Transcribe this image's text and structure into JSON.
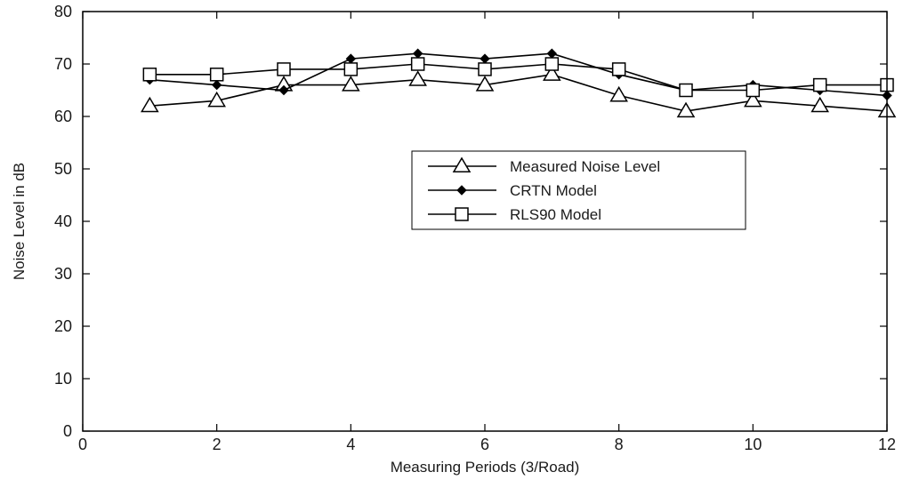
{
  "chart_data": {
    "type": "line",
    "title": "",
    "xlabel": "Measuring Periods (3/Road)",
    "ylabel": "Noise Level in dB",
    "xlim": [
      0,
      12
    ],
    "ylim": [
      0,
      80
    ],
    "xticks": [
      0,
      2,
      4,
      6,
      8,
      10,
      12
    ],
    "yticks": [
      0,
      10,
      20,
      30,
      40,
      50,
      60,
      70,
      80
    ],
    "grid": false,
    "legend_position": "center-right",
    "x": [
      1,
      2,
      3,
      4,
      5,
      6,
      7,
      8,
      9,
      10,
      11,
      12
    ],
    "series": [
      {
        "name": "Measured Noise Level",
        "marker": "triangle",
        "color": "#000000",
        "values": [
          62,
          63,
          66,
          66,
          67,
          66,
          68,
          64,
          61,
          63,
          62,
          61
        ]
      },
      {
        "name": "CRTN Model",
        "marker": "diamond",
        "color": "#000000",
        "values": [
          67,
          66,
          65,
          71,
          72,
          71,
          72,
          68,
          65,
          66,
          65,
          64
        ]
      },
      {
        "name": "RLS90 Model",
        "marker": "square",
        "color": "#000000",
        "values": [
          68,
          68,
          69,
          69,
          70,
          69,
          70,
          69,
          65,
          65,
          66,
          66
        ]
      }
    ]
  }
}
